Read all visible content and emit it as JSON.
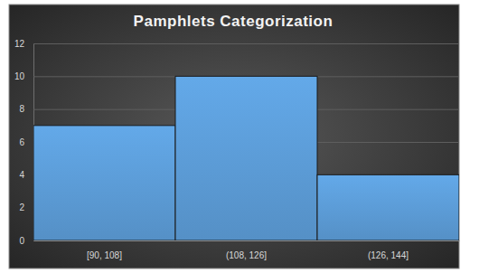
{
  "chart_data": {
    "type": "histogram",
    "title": "Pamphlets Categorization",
    "bins": [
      90,
      108,
      126,
      144
    ],
    "categories": [
      "[90, 108]",
      "(108, 126]",
      "(126, 144]"
    ],
    "values": [
      7,
      10,
      4
    ],
    "color": "#5b9bd5",
    "ylim": [
      0,
      12
    ],
    "yticks": [
      0,
      2,
      4,
      6,
      8,
      10,
      12
    ],
    "grid": true
  }
}
